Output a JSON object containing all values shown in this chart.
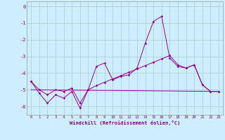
{
  "bg_color": "#cceeff",
  "grid_color": "#aacccc",
  "line_color": "#990099",
  "xlabel": "Windchill (Refroidissement éolien,°C)",
  "xlim": [
    -0.5,
    23.5
  ],
  "ylim": [
    -6.5,
    0.3
  ],
  "yticks": [
    0,
    -1,
    -2,
    -3,
    -4,
    -5,
    -6
  ],
  "xticks": [
    0,
    1,
    2,
    3,
    4,
    5,
    6,
    7,
    8,
    9,
    10,
    11,
    12,
    13,
    14,
    15,
    16,
    17,
    18,
    19,
    20,
    21,
    22,
    23
  ],
  "curve1_x": [
    0,
    1,
    2,
    3,
    4,
    5,
    6,
    7,
    8,
    9,
    10,
    11,
    12,
    13,
    14,
    15,
    16,
    17,
    18,
    19,
    20,
    21,
    22,
    23
  ],
  "curve1_y": [
    -4.5,
    -5.2,
    -5.8,
    -5.3,
    -5.5,
    -5.1,
    -6.1,
    -5.0,
    -3.6,
    -3.4,
    -4.4,
    -4.2,
    -4.1,
    -3.7,
    -2.2,
    -0.9,
    -0.6,
    -3.1,
    -3.6,
    -3.7,
    -3.5,
    -4.7,
    -5.1,
    -5.1
  ],
  "curve2_x": [
    0,
    1,
    2,
    3,
    4,
    5,
    6,
    7,
    8,
    9,
    10,
    11,
    12,
    13,
    14,
    15,
    16,
    17,
    18,
    19,
    20,
    21,
    22,
    23
  ],
  "curve2_y": [
    -4.5,
    -5.0,
    -5.3,
    -5.0,
    -5.1,
    -4.9,
    -5.8,
    -5.0,
    -4.75,
    -4.55,
    -4.35,
    -4.15,
    -3.95,
    -3.75,
    -3.55,
    -3.35,
    -3.15,
    -2.95,
    -3.5,
    -3.7,
    -3.5,
    -4.7,
    -5.1,
    -5.1
  ],
  "line3_x": [
    0,
    23
  ],
  "line3_y": [
    -5.0,
    -5.1
  ]
}
